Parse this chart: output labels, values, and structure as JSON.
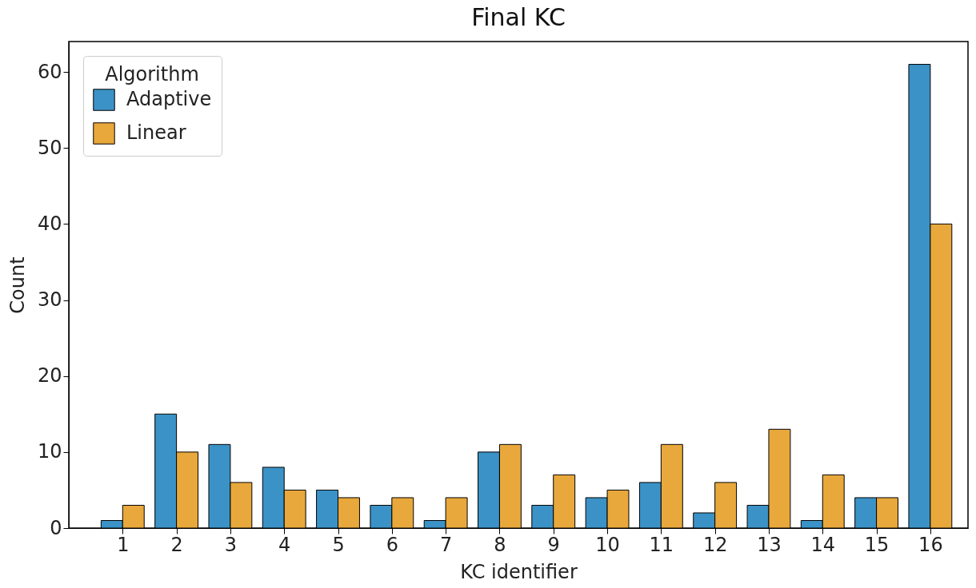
{
  "chart_data": {
    "type": "bar",
    "title": "Final KC",
    "xlabel": "KC identifier",
    "ylabel": "Count",
    "legend_title": "Algorithm",
    "x": [
      1,
      2,
      3,
      4,
      5,
      6,
      7,
      8,
      9,
      10,
      11,
      12,
      13,
      14,
      15,
      16
    ],
    "series": [
      {
        "name": "Adaptive",
        "color": "#3b92c6",
        "values": [
          1,
          15,
          11,
          8,
          5,
          3,
          1,
          10,
          3,
          4,
          6,
          2,
          3,
          1,
          4,
          61
        ]
      },
      {
        "name": "Linear",
        "color": "#e8a83c",
        "values": [
          3,
          10,
          6,
          5,
          4,
          4,
          4,
          11,
          7,
          5,
          11,
          6,
          13,
          7,
          4,
          40
        ]
      }
    ],
    "xlim": [
      0,
      16.7
    ],
    "xticks": [
      1,
      2,
      3,
      4,
      5,
      6,
      7,
      8,
      9,
      10,
      11,
      12,
      13,
      14,
      15,
      16
    ],
    "ylim": [
      0,
      64
    ],
    "yticks": [
      0,
      10,
      20,
      30,
      40,
      50,
      60
    ],
    "legend": "top left",
    "grid": false
  }
}
